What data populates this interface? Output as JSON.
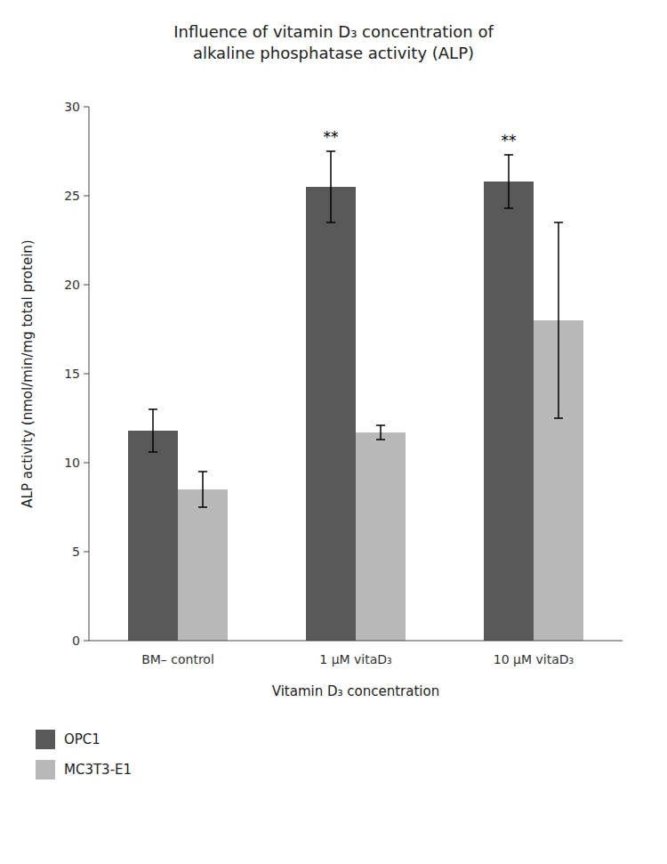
{
  "chart_data": {
    "type": "bar",
    "title": "Influence of vitamin D₃ concentration of\nalkaline phosphatase activity (ALP)",
    "x_label": "Vitamin D₃ concentration",
    "y_label": "ALP activity (nmol/min/mg total protein)",
    "categories": [
      "BM– control",
      "1 μM vitaD₃",
      "10 μM vitaD₃"
    ],
    "series": [
      {
        "name": "OPC1",
        "color": "#595959",
        "values": [
          11.8,
          25.5,
          25.8
        ],
        "errors": [
          1.2,
          2.0,
          1.5
        ]
      },
      {
        "name": "MC3T3-E1",
        "color": "#b8b8b8",
        "values": [
          8.5,
          11.7,
          18.0
        ],
        "errors": [
          1.0,
          0.4,
          5.5
        ]
      }
    ],
    "annotations": [
      {
        "text": "**",
        "category": "1 μM vitaD₃",
        "series": "OPC1"
      },
      {
        "text": "**",
        "category": "10 μM vitaD₃",
        "series": "OPC1"
      }
    ],
    "ylim": [
      0,
      30
    ],
    "yticks": [
      0,
      5,
      10,
      15,
      20,
      25,
      30
    ],
    "grid": false,
    "legend": "lower-left"
  }
}
